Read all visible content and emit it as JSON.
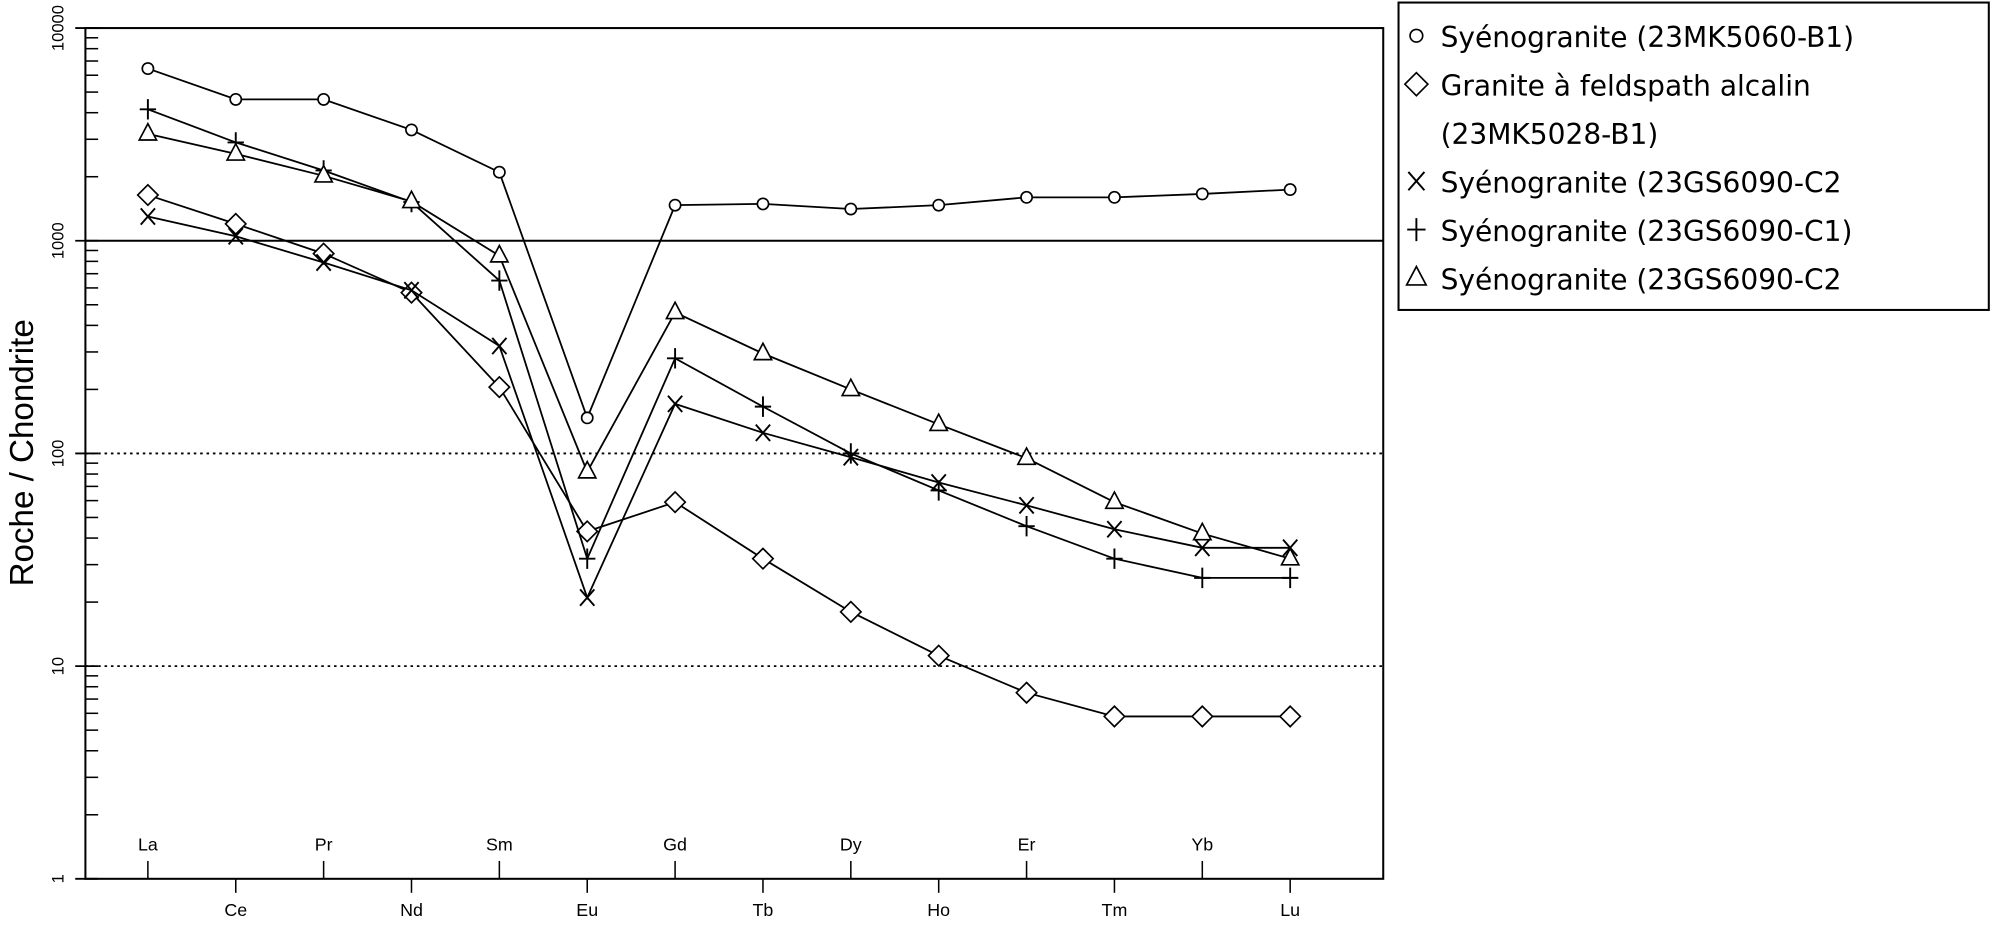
{
  "chart_data": {
    "type": "line",
    "title": "",
    "xlabel": "",
    "ylabel": "Roche / Chondrite",
    "yscale": "log",
    "ylim": [
      1,
      10000
    ],
    "y_ticks": [
      "1",
      "10",
      "100",
      "1000",
      "10000"
    ],
    "reference_lines": [
      {
        "y": 1000,
        "style": "solid"
      },
      {
        "y": 100,
        "style": "dotted"
      },
      {
        "y": 10,
        "style": "dotted"
      }
    ],
    "categories": [
      "La",
      "Ce",
      "Pr",
      "Nd",
      "Sm",
      "Eu",
      "Gd",
      "Tb",
      "Dy",
      "Ho",
      "Er",
      "Tm",
      "Yb",
      "Lu"
    ],
    "legend_position": "top-right, outside",
    "series": [
      {
        "name": "Syénogranite (23MK5060-B1)",
        "marker": "circle",
        "values": [
          6450,
          4620,
          4620,
          3320,
          2100,
          147,
          1470,
          1490,
          1410,
          1470,
          1600,
          1600,
          1660,
          1740
        ]
      },
      {
        "name": "Granite à feldspath alcalin (23MK5028-B1)",
        "name_lines": [
          "Granite à feldspath alcalin",
          "(23MK5028-B1)"
        ],
        "marker": "diamond",
        "values": [
          1640,
          1200,
          870,
          570,
          205,
          43,
          59,
          32,
          18,
          11.2,
          7.5,
          5.8,
          5.8,
          5.8
        ]
      },
      {
        "name": "Syénogranite (23GS6090-C2",
        "marker": "x",
        "values": [
          1300,
          1050,
          790,
          585,
          320,
          21,
          171,
          125,
          96,
          73,
          57,
          44,
          36,
          36
        ]
      },
      {
        "name": "Syénogranite (23GS6090-C1)",
        "marker": "plus",
        "values": [
          4150,
          2900,
          2140,
          1520,
          650,
          32,
          280,
          166,
          100,
          67,
          45.5,
          32,
          26,
          26
        ]
      },
      {
        "name": "Syénogranite (23GS6090-C2",
        "marker": "triangle",
        "values": [
          3180,
          2560,
          2020,
          1530,
          850,
          82,
          460,
          295,
          200,
          137,
          95,
          59,
          42,
          32
        ]
      }
    ]
  }
}
